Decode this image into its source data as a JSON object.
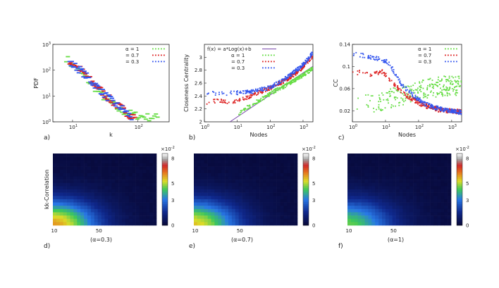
{
  "chart_data": [
    {
      "id": "a",
      "panel_label": "a)",
      "type": "scatter",
      "xscale": "log",
      "yscale": "log",
      "xlim": [
        5,
        300
      ],
      "ylim": [
        1,
        1000
      ],
      "xlabel": "k",
      "ylabel": "PDF",
      "xticks": [
        {
          "v": 10,
          "base": "10",
          "exp": "1"
        },
        {
          "v": 100,
          "base": "10",
          "exp": "2"
        }
      ],
      "yticks": [
        {
          "v": 1,
          "base": "10",
          "exp": "0"
        },
        {
          "v": 10,
          "base": "10",
          "exp": "1"
        },
        {
          "v": 100,
          "base": "10",
          "exp": "2"
        },
        {
          "v": 1000,
          "base": "10",
          "exp": "3"
        }
      ],
      "legend": {
        "position": "top-right",
        "entries": [
          "α =  1",
          "= 0.7",
          "= 0.3"
        ]
      },
      "series": [
        {
          "name": "α = 1",
          "color": "#66dd44",
          "points": [
            [
              8,
              300
            ],
            [
              9,
              200
            ],
            [
              10,
              150
            ],
            [
              12,
              100
            ],
            [
              14,
              70
            ],
            [
              16,
              50
            ],
            [
              18,
              35
            ],
            [
              20,
              25
            ],
            [
              25,
              15
            ],
            [
              30,
              9
            ],
            [
              40,
              5
            ],
            [
              50,
              3
            ],
            [
              60,
              2.5
            ],
            [
              80,
              2
            ],
            [
              100,
              1.7
            ],
            [
              150,
              1.5
            ],
            [
              200,
              1.5
            ]
          ]
        },
        {
          "name": "α = 0.7",
          "color": "#dd2222",
          "points": [
            [
              9,
              220
            ],
            [
              10,
              180
            ],
            [
              12,
              130
            ],
            [
              14,
              90
            ],
            [
              16,
              60
            ],
            [
              18,
              45
            ],
            [
              20,
              33
            ],
            [
              25,
              20
            ],
            [
              30,
              12
            ],
            [
              40,
              6
            ],
            [
              50,
              4
            ],
            [
              60,
              3
            ],
            [
              70,
              2
            ],
            [
              90,
              1.5
            ]
          ]
        },
        {
          "name": "α = 0.3",
          "color": "#3355ee",
          "points": [
            [
              9,
              190
            ],
            [
              10,
              160
            ],
            [
              12,
              120
            ],
            [
              14,
              85
            ],
            [
              16,
              60
            ],
            [
              18,
              45
            ],
            [
              20,
              33
            ],
            [
              25,
              20
            ],
            [
              30,
              12
            ],
            [
              40,
              6
            ],
            [
              50,
              4
            ],
            [
              60,
              3
            ],
            [
              70,
              2
            ],
            [
              80,
              1.5
            ]
          ]
        }
      ]
    },
    {
      "id": "b",
      "panel_label": "b)",
      "type": "scatter",
      "xscale": "log",
      "yscale": "linear",
      "xlim": [
        1,
        2000
      ],
      "ylim": [
        2,
        3.2
      ],
      "xlabel": "Nodes",
      "ylabel": "Closeness Centrality",
      "xticks": [
        {
          "v": 1,
          "base": "10",
          "exp": "0"
        },
        {
          "v": 10,
          "base": "10",
          "exp": "1"
        },
        {
          "v": 100,
          "base": "10",
          "exp": "2"
        },
        {
          "v": 1000,
          "base": "10",
          "exp": "3"
        }
      ],
      "yticks": [
        {
          "v": 2,
          "t": "2"
        },
        {
          "v": 2.2,
          "t": "2.2"
        },
        {
          "v": 2.4,
          "t": "2.4"
        },
        {
          "v": 2.6,
          "t": "2.6"
        },
        {
          "v": 2.8,
          "t": "2.8"
        },
        {
          "v": 3,
          "t": "3"
        }
      ],
      "legend": {
        "position": "top-left",
        "entries": [
          "f(x) = a*Log(x)+b",
          "α =  1",
          "= 0.7",
          "= 0.3"
        ]
      },
      "fit_line": {
        "name": "f(x) = a*Log(x)+b",
        "color": "#7744aa",
        "points": [
          [
            6,
            2.0
          ],
          [
            2000,
            2.86
          ]
        ]
      },
      "series": [
        {
          "name": "α = 1",
          "color": "#66dd44",
          "points": [
            [
              8,
              2.05
            ],
            [
              10,
              2.1
            ],
            [
              15,
              2.17
            ],
            [
              20,
              2.22
            ],
            [
              30,
              2.28
            ],
            [
              50,
              2.34
            ],
            [
              80,
              2.4
            ],
            [
              120,
              2.46
            ],
            [
              200,
              2.52
            ],
            [
              300,
              2.56
            ],
            [
              500,
              2.63
            ],
            [
              800,
              2.69
            ],
            [
              1200,
              2.75
            ],
            [
              2000,
              2.83
            ]
          ]
        },
        {
          "name": "α = 0.7",
          "color": "#dd2222",
          "points": [
            [
              1,
              2.29
            ],
            [
              2,
              2.32
            ],
            [
              3,
              2.33
            ],
            [
              5,
              2.3
            ],
            [
              8,
              2.32
            ],
            [
              10,
              2.33
            ],
            [
              15,
              2.35
            ],
            [
              20,
              2.38
            ],
            [
              30,
              2.42
            ],
            [
              50,
              2.46
            ],
            [
              80,
              2.5
            ],
            [
              120,
              2.54
            ],
            [
              200,
              2.6
            ],
            [
              300,
              2.65
            ],
            [
              500,
              2.72
            ],
            [
              800,
              2.8
            ],
            [
              1200,
              2.9
            ],
            [
              2000,
              3.02
            ]
          ]
        },
        {
          "name": "α = 0.3",
          "color": "#3355ee",
          "points": [
            [
              1,
              2.44
            ],
            [
              2,
              2.44
            ],
            [
              3,
              2.44
            ],
            [
              5,
              2.44
            ],
            [
              8,
              2.45
            ],
            [
              10,
              2.45
            ],
            [
              15,
              2.45
            ],
            [
              20,
              2.46
            ],
            [
              30,
              2.47
            ],
            [
              50,
              2.5
            ],
            [
              80,
              2.52
            ],
            [
              120,
              2.56
            ],
            [
              200,
              2.62
            ],
            [
              300,
              2.68
            ],
            [
              500,
              2.76
            ],
            [
              800,
              2.84
            ],
            [
              1200,
              2.93
            ],
            [
              2000,
              3.07
            ]
          ]
        }
      ]
    },
    {
      "id": "c",
      "panel_label": "c)",
      "type": "scatter",
      "xscale": "log",
      "yscale": "linear",
      "xlim": [
        1,
        2000
      ],
      "ylim": [
        0,
        0.14
      ],
      "xlabel": "Nodes",
      "ylabel": "CC",
      "xticks": [
        {
          "v": 1,
          "base": "10",
          "exp": "0"
        },
        {
          "v": 10,
          "base": "10",
          "exp": "1"
        },
        {
          "v": 100,
          "base": "10",
          "exp": "2"
        },
        {
          "v": 1000,
          "base": "10",
          "exp": "3"
        }
      ],
      "yticks": [
        {
          "v": 0.02,
          "t": "0.02"
        },
        {
          "v": 0.06,
          "t": "0.06"
        },
        {
          "v": 0.1,
          "t": "0.1"
        },
        {
          "v": 0.14,
          "t": "0.14"
        }
      ],
      "legend": {
        "position": "top-right",
        "entries": [
          "α =  1",
          "= 0.7",
          "= 0.3"
        ]
      },
      "series": [
        {
          "name": "α = 1",
          "color": "#66dd44",
          "points": [
            [
              1,
              0.03
            ],
            [
              2,
              0.032
            ],
            [
              4,
              0.035
            ],
            [
              8,
              0.038
            ],
            [
              10,
              0.04
            ],
            [
              20,
              0.045
            ],
            [
              40,
              0.05
            ],
            [
              80,
              0.055
            ],
            [
              150,
              0.06
            ],
            [
              300,
              0.062
            ],
            [
              600,
              0.065
            ],
            [
              1000,
              0.065
            ],
            [
              2000,
              0.065
            ]
          ]
        },
        {
          "name": "α = 0.7",
          "color": "#dd2222",
          "points": [
            [
              1,
              0.088
            ],
            [
              2,
              0.09
            ],
            [
              3,
              0.085
            ],
            [
              5,
              0.088
            ],
            [
              8,
              0.09
            ],
            [
              10,
              0.085
            ],
            [
              15,
              0.075
            ],
            [
              20,
              0.065
            ],
            [
              30,
              0.055
            ],
            [
              50,
              0.045
            ],
            [
              80,
              0.038
            ],
            [
              120,
              0.032
            ],
            [
              200,
              0.027
            ],
            [
              400,
              0.022
            ],
            [
              800,
              0.02
            ],
            [
              2000,
              0.018
            ]
          ]
        },
        {
          "name": "α = 0.3",
          "color": "#3355ee",
          "points": [
            [
              1,
              0.122
            ],
            [
              2,
              0.12
            ],
            [
              3,
              0.118
            ],
            [
              5,
              0.115
            ],
            [
              8,
              0.112
            ],
            [
              10,
              0.11
            ],
            [
              15,
              0.1
            ],
            [
              20,
              0.085
            ],
            [
              30,
              0.068
            ],
            [
              50,
              0.055
            ],
            [
              80,
              0.045
            ],
            [
              120,
              0.037
            ],
            [
              200,
              0.03
            ],
            [
              400,
              0.024
            ],
            [
              800,
              0.02
            ],
            [
              2000,
              0.017
            ]
          ]
        }
      ]
    },
    {
      "id": "d",
      "panel_label": "d)",
      "type": "heatmap",
      "caption": "(α=0.3)",
      "ylabel": "kk-Correlation",
      "xticks": [
        {
          "v": 10,
          "t": "10"
        },
        {
          "v": 50,
          "t": "50"
        }
      ],
      "xlim": [
        10,
        100
      ],
      "colorbar": {
        "exp_label": "×10",
        "exp_sup": "-2",
        "ticks": [
          {
            "v": 0,
            "t": "0"
          },
          {
            "v": 3,
            "t": "3"
          },
          {
            "v": 5,
            "t": "5"
          },
          {
            "v": 8,
            "t": "8"
          }
        ],
        "min": 0,
        "max": 8.6
      },
      "hotspot_value": 5.5
    },
    {
      "id": "e",
      "panel_label": "e)",
      "type": "heatmap",
      "caption": "(α=0.7)",
      "ylabel": "",
      "xticks": [
        {
          "v": 10,
          "t": "10"
        },
        {
          "v": 50,
          "t": "50"
        }
      ],
      "xlim": [
        10,
        100
      ],
      "colorbar": {
        "exp_label": "×10",
        "exp_sup": "-2",
        "ticks": [
          {
            "v": 0,
            "t": "0"
          },
          {
            "v": 3,
            "t": "3"
          },
          {
            "v": 5,
            "t": "5"
          },
          {
            "v": 8,
            "t": "8"
          }
        ],
        "min": 0,
        "max": 8.6
      },
      "hotspot_value": 5.0
    },
    {
      "id": "f",
      "panel_label": "f)",
      "type": "heatmap",
      "caption": "(α=1)",
      "ylabel": "",
      "xticks": [
        {
          "v": 10,
          "t": "10"
        },
        {
          "v": 50,
          "t": "50"
        }
      ],
      "xlim": [
        10,
        100
      ],
      "colorbar": {
        "exp_label": "×10",
        "exp_sup": "-2",
        "ticks": [
          {
            "v": 0,
            "t": "0"
          },
          {
            "v": 3,
            "t": "3"
          },
          {
            "v": 5,
            "t": "5"
          },
          {
            "v": 8,
            "t": "8"
          }
        ],
        "min": 0,
        "max": 8.6
      },
      "hotspot_value": 4.0
    }
  ],
  "colors": {
    "axis": "#222222",
    "fit": "#7744aa"
  }
}
